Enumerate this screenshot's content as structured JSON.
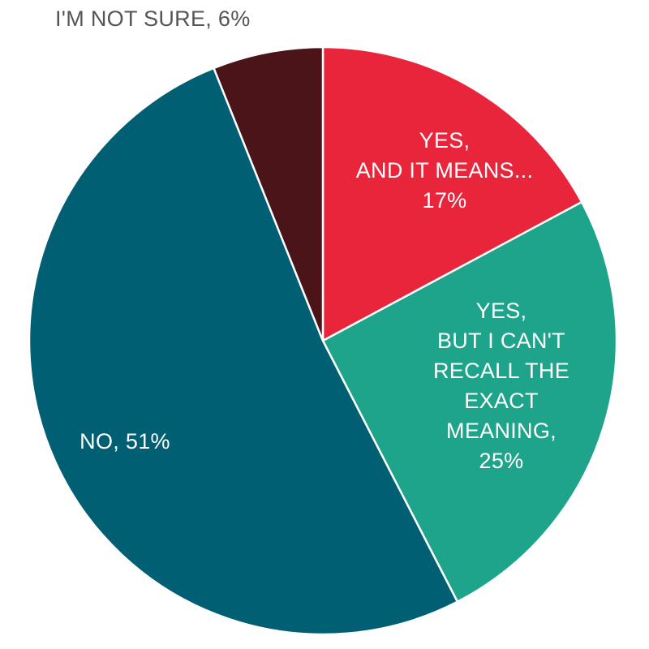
{
  "chart_data": {
    "type": "pie",
    "start_angle_deg": 0,
    "direction": "clockwise",
    "slices": [
      {
        "label_lines": [
          "YES,",
          "AND IT MEANS...",
          "17%"
        ],
        "value": 17,
        "color": "#e8253b",
        "text_color": "#ffffff"
      },
      {
        "label_lines": [
          "YES,",
          "BUT I CAN'T",
          "RECALL THE",
          "EXACT",
          "MEANING,",
          "25%"
        ],
        "value": 25,
        "color": "#1ea48b",
        "text_color": "#ffffff"
      },
      {
        "label_lines": [
          "NO, 51%"
        ],
        "value": 51,
        "color": "#005f73",
        "text_color": "#ffffff"
      },
      {
        "label_lines": [
          "I'M NOT SURE, 6%"
        ],
        "value": 6,
        "color": "#4a1418",
        "text_color": "#555555",
        "label_outside": true
      }
    ],
    "edge_color": "#ffffff"
  }
}
